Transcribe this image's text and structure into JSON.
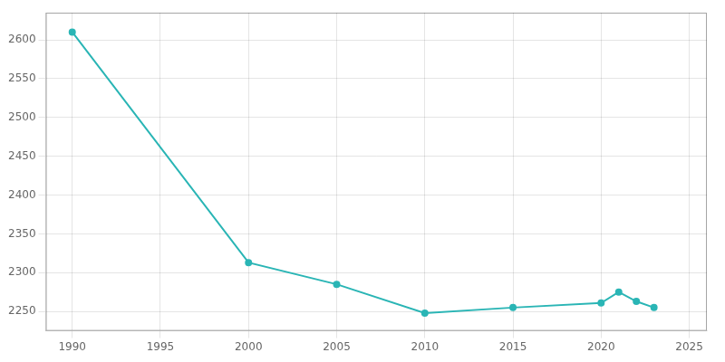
{
  "chart_data": {
    "type": "line",
    "x": [
      1990,
      2000,
      2005,
      2010,
      2015,
      2020,
      2021,
      2022,
      2023
    ],
    "values": [
      2610,
      2313,
      2285,
      2248,
      2255,
      2261,
      2275,
      2263,
      2255
    ],
    "color": "#2ab5b5",
    "marker": "circle",
    "xlim": [
      1988.5,
      2026
    ],
    "ylim": [
      2225,
      2635
    ],
    "xticks": [
      1990,
      1995,
      2000,
      2005,
      2010,
      2015,
      2020,
      2025
    ],
    "yticks": [
      2250,
      2300,
      2350,
      2400,
      2450,
      2500,
      2550,
      2600
    ],
    "grid": true
  }
}
